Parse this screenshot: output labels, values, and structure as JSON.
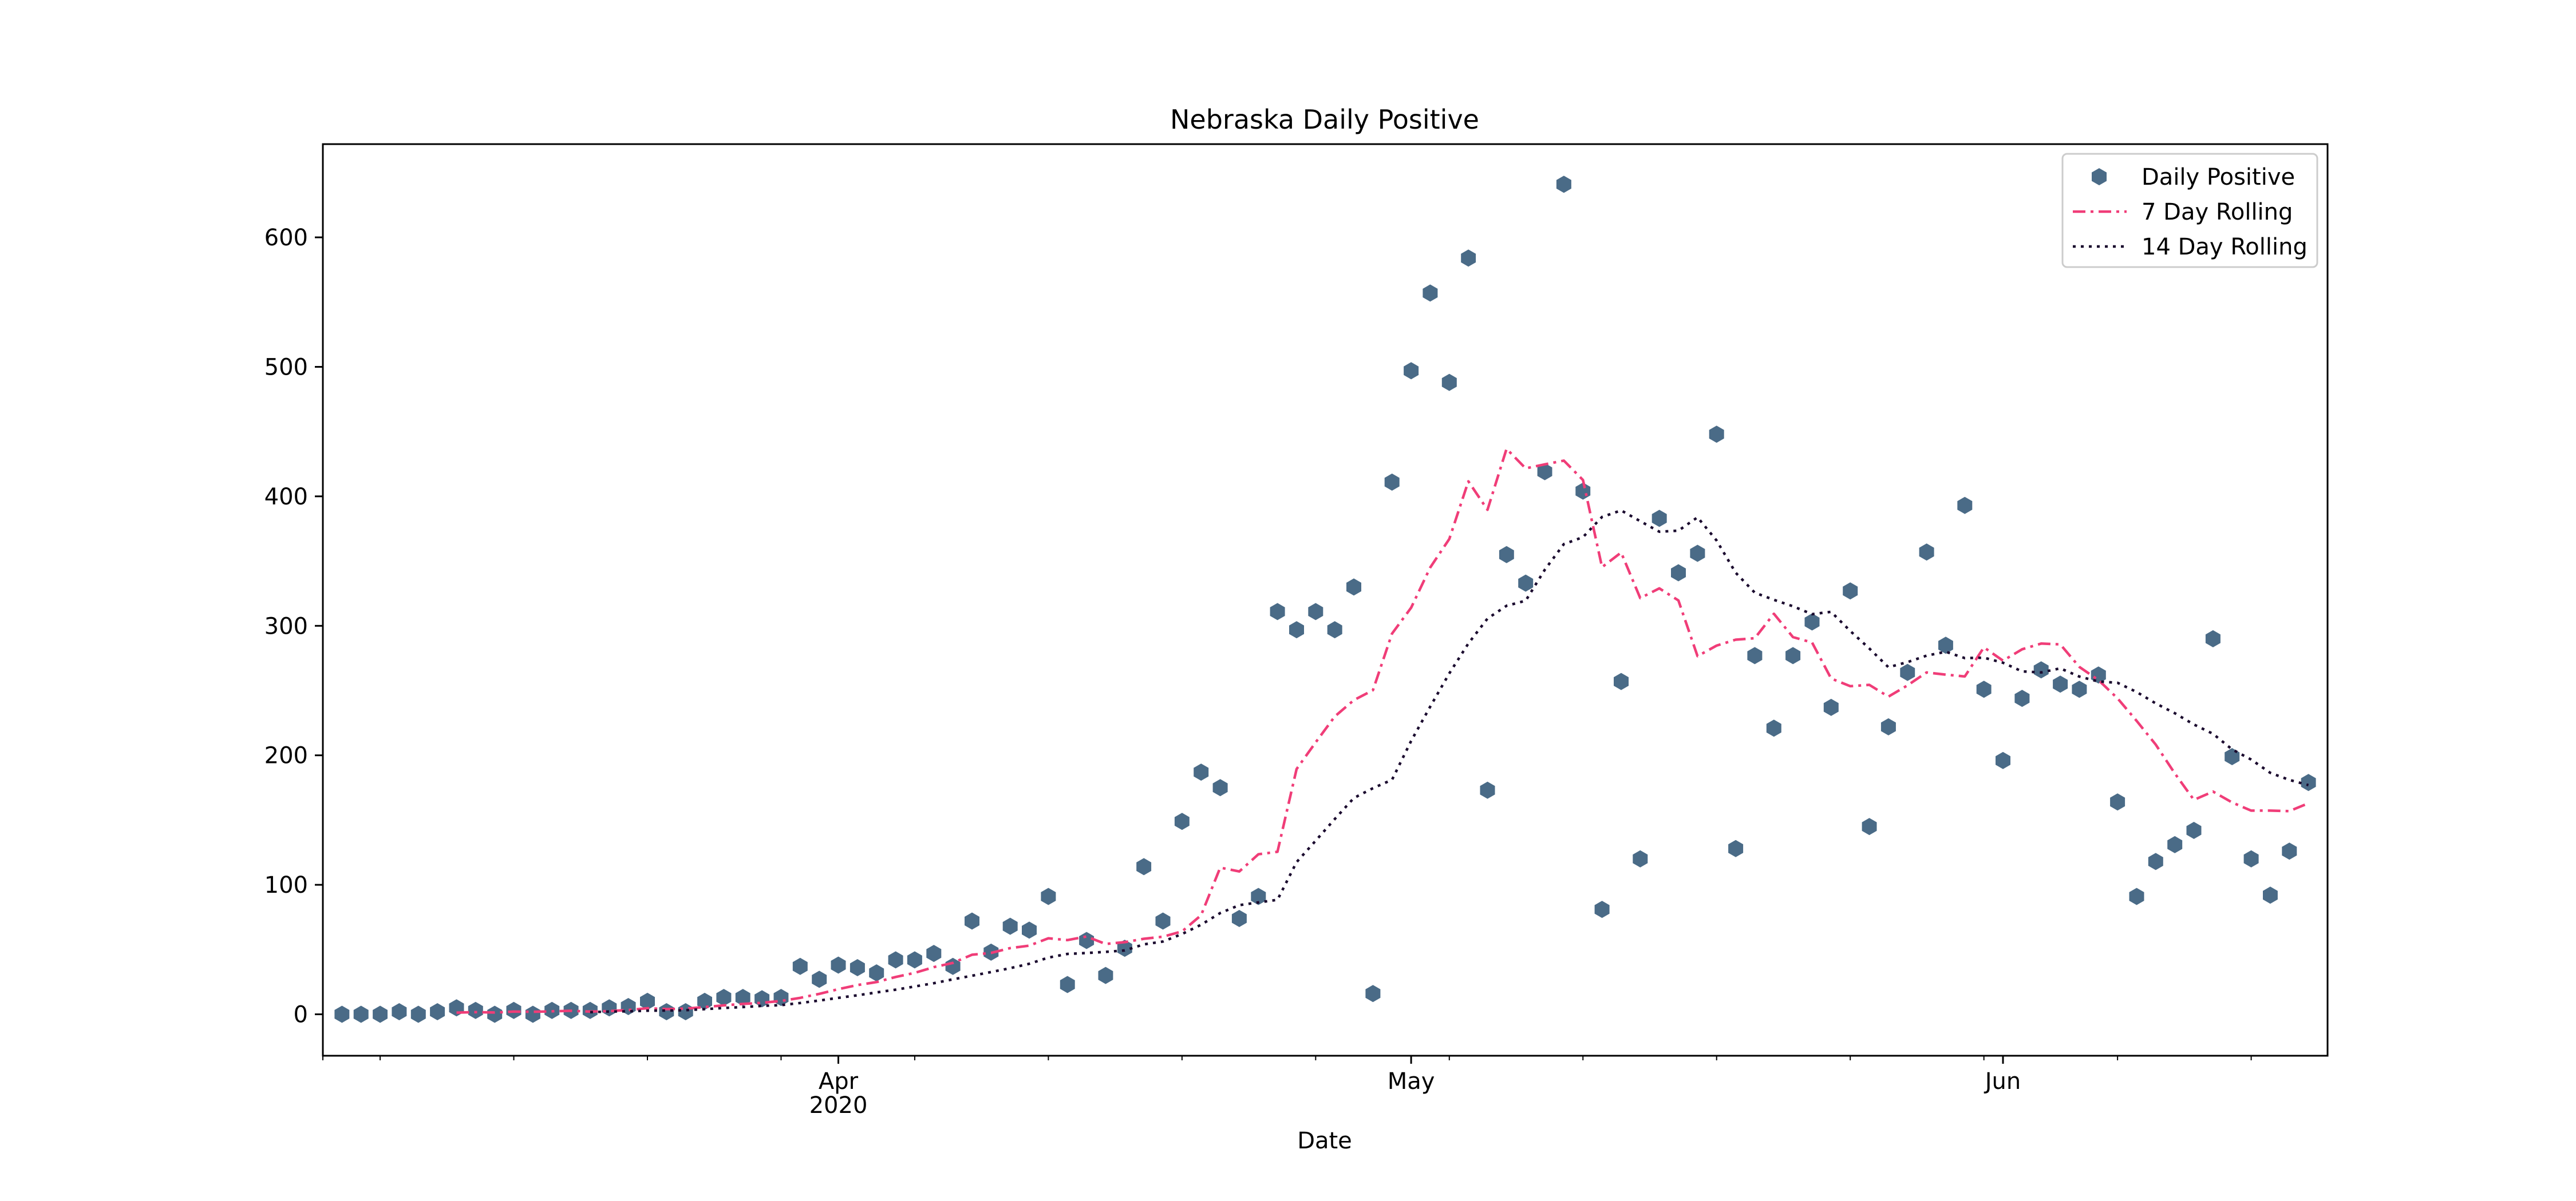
{
  "chart_data": {
    "type": "line",
    "title": "Nebraska Daily Positive",
    "xlabel": "Date",
    "ylabel": "",
    "ylim": [
      -32,
      672
    ],
    "xlim": [
      "2020-03-05",
      "2020-06-18"
    ],
    "x_major_ticks": [
      {
        "date": "2020-04-01",
        "label": "Apr",
        "sublabel": "2020"
      },
      {
        "date": "2020-05-01",
        "label": "May",
        "sublabel": ""
      },
      {
        "date": "2020-06-01",
        "label": "Jun",
        "sublabel": ""
      }
    ],
    "x_minor_ticks": [
      "2020-03-05",
      "2020-03-08",
      "2020-03-15",
      "2020-03-22",
      "2020-03-29",
      "2020-04-05",
      "2020-04-12",
      "2020-04-19",
      "2020-04-26",
      "2020-05-03",
      "2020-05-10",
      "2020-05-17",
      "2020-05-24",
      "2020-05-31",
      "2020-06-07",
      "2020-06-14"
    ],
    "y_ticks": [
      0,
      100,
      200,
      300,
      400,
      500,
      600
    ],
    "legend_position": "top-right",
    "grid": false,
    "start_date": "2020-03-06",
    "series": [
      {
        "name": "Daily Positive",
        "style": "markers",
        "marker": "hexagon",
        "color": "#4a6b87",
        "values": [
          0,
          0,
          0,
          2,
          0,
          2,
          5,
          3,
          0,
          3,
          0,
          3,
          3,
          3,
          5,
          6,
          10,
          2,
          2,
          10,
          13,
          13,
          12,
          13,
          37,
          27,
          38,
          36,
          32,
          42,
          42,
          47,
          37,
          72,
          48,
          68,
          65,
          91,
          23,
          57,
          30,
          51,
          114,
          72,
          149,
          187,
          175,
          74,
          91,
          311,
          297,
          311,
          297,
          330,
          16,
          411,
          497,
          557,
          488,
          584,
          173,
          355,
          333,
          419,
          641,
          404,
          81,
          257,
          120,
          383,
          341,
          356,
          448,
          128,
          277,
          221,
          277,
          303,
          237,
          327,
          145,
          222,
          264,
          357,
          285,
          393,
          251,
          196,
          244,
          266,
          255,
          251,
          262,
          164,
          91,
          118,
          131,
          142,
          290,
          199,
          120,
          92,
          126,
          179
        ]
      },
      {
        "name": "7 Day Rolling",
        "style": "dashdot",
        "color": "#f03d78",
        "values": [
          null,
          null,
          null,
          null,
          null,
          null,
          1.3,
          1.7,
          1.4,
          2.1,
          1.9,
          2.3,
          2.7,
          2.1,
          2.5,
          3.3,
          4.7,
          4.0,
          4.4,
          5.6,
          6.9,
          8.0,
          8.9,
          10.3,
          12.7,
          15.8,
          19.4,
          22.6,
          24.9,
          28.8,
          32.0,
          36.4,
          39.7,
          46.0,
          47.4,
          51.1,
          53.0,
          58.7,
          57.3,
          60.1,
          54.3,
          55.7,
          58.3,
          59.9,
          64.0,
          76.5,
          113.3,
          110.3,
          123.6,
          125.5,
          189.4,
          210.0,
          230.0,
          242.6,
          250.3,
          294.0,
          314.0,
          345.0,
          367.1,
          411.6,
          389.6,
          436.7,
          421.6,
          424.7,
          427.6,
          412.6,
          345.3,
          356.6,
          321.4,
          328.9,
          319.6,
          276.6,
          284.7,
          289.3,
          290.4,
          309.3,
          291.3,
          287.1,
          259.3,
          253.4,
          254.4,
          245.3,
          254.0,
          264.0,
          262.3,
          260.9,
          283.4,
          273.1,
          281.9,
          286.3,
          285.7,
          268.3,
          258.1,
          244.0,
          226.6,
          208.3,
          186.0,
          165.6,
          172.0,
          163.6,
          157.3,
          157.3,
          156.9,
          163.0
        ]
      },
      {
        "name": "14 Day Rolling",
        "style": "dotted",
        "color": "#1a0a2e",
        "values": [
          null,
          null,
          null,
          null,
          null,
          null,
          null,
          null,
          null,
          null,
          null,
          null,
          null,
          1.7,
          2.1,
          2.3,
          2.8,
          2.9,
          3.2,
          4.0,
          4.9,
          5.6,
          6.5,
          7.1,
          8.7,
          10.6,
          12.7,
          14.7,
          16.9,
          19.0,
          21.5,
          24.0,
          27.0,
          29.8,
          32.6,
          35.6,
          39.0,
          43.8,
          46.6,
          47.3,
          48.2,
          49.3,
          54.0,
          56.2,
          62.0,
          69.2,
          78.2,
          84.3,
          86.4,
          88.4,
          117.5,
          134.0,
          150.8,
          167.0,
          174.6,
          181.1,
          211.1,
          237.6,
          263.3,
          286.4,
          305.6,
          315.5,
          319.4,
          343.3,
          363.1,
          368.5,
          384.1,
          389.1,
          380.8,
          372.7,
          373.5,
          383.8,
          365.9,
          341.0,
          325.6,
          320.1,
          315.1,
          309.0,
          310.8,
          296.0,
          282.5,
          268.0,
          272.0,
          277.0,
          280.0,
          275.1,
          275.4,
          271.5,
          264.8,
          264.0,
          267.2,
          260.8,
          257.0,
          256.0,
          248.9,
          240.1,
          232.5,
          223.8,
          216.6,
          204.6,
          196.7,
          186.5,
          181.0,
          177.0
        ]
      }
    ]
  }
}
